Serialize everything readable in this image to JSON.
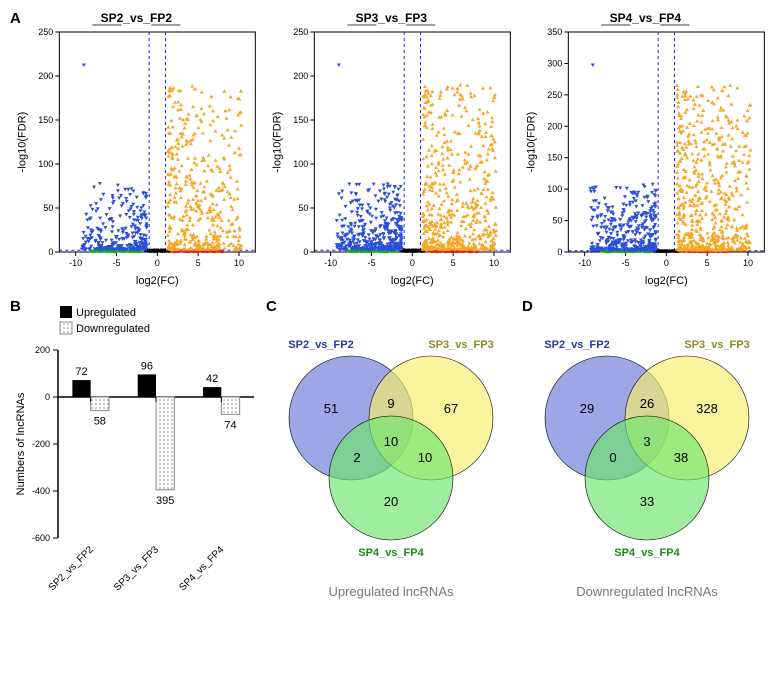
{
  "panelA": {
    "label": "A",
    "plots": [
      {
        "title": "SP2_vs_FP2",
        "xlabel": "log2(FC)",
        "ylabel": "-log10(FDR)",
        "xlim": [
          -12,
          12
        ],
        "ylim": [
          0,
          250
        ],
        "ytick_step": 50,
        "xtick_vals": [
          -10,
          -5,
          0,
          5,
          10
        ],
        "colors": {
          "up": "#f5a623",
          "down": "#2b4fd6",
          "ns_black": "#000000",
          "ns_green": "#1ab01a",
          "ns_red": "#d9262b",
          "thresh": "#2222dd",
          "axis": "#000000",
          "bg": "#ffffff"
        }
      },
      {
        "title": "SP3_vs_FP3",
        "xlabel": "log2(FC)",
        "ylabel": "-log10(FDR)",
        "xlim": [
          -12,
          12
        ],
        "ylim": [
          0,
          250
        ],
        "ytick_step": 50,
        "xtick_vals": [
          -10,
          -5,
          0,
          5,
          10
        ],
        "colors": {
          "up": "#f5a623",
          "down": "#2b4fd6",
          "ns_black": "#000000",
          "ns_green": "#1ab01a",
          "ns_red": "#d9262b",
          "thresh": "#2222dd",
          "axis": "#000000",
          "bg": "#ffffff"
        }
      },
      {
        "title": "SP4_vs_FP4",
        "xlabel": "log2(FC)",
        "ylabel": "-log10(FDR)",
        "xlim": [
          -12,
          12
        ],
        "ylim": [
          0,
          350
        ],
        "ytick_step": 50,
        "xtick_vals": [
          -10,
          -5,
          0,
          5,
          10
        ],
        "colors": {
          "up": "#f5a623",
          "down": "#2b4fd6",
          "ns_black": "#000000",
          "ns_green": "#1ab01a",
          "ns_red": "#d9262b",
          "thresh": "#2222dd",
          "axis": "#000000",
          "bg": "#ffffff"
        }
      }
    ]
  },
  "panelB": {
    "label": "B",
    "ylabel": "Numbers of lncRNAs",
    "ylim": [
      -600,
      200
    ],
    "ytick_vals": [
      -600,
      -400,
      -200,
      0,
      200
    ],
    "legend": {
      "up": "Upregulated",
      "down": "Downregulated"
    },
    "categories": [
      "SP2_vs_FP2",
      "SP3_vs_FP3",
      "SP4_vs_FP4"
    ],
    "up_values": [
      72,
      96,
      42
    ],
    "down_values": [
      58,
      395,
      74
    ],
    "colors": {
      "up_fill": "#000000",
      "down_fill": "#ffffff",
      "down_pattern": "#888888",
      "down_border": "#888888",
      "axis": "#000000",
      "text": "#000000"
    }
  },
  "panelC": {
    "label": "C",
    "caption": "Upregulated lncRNAs",
    "sets": {
      "A": {
        "label": "SP2_vs_FP2",
        "color": "#6a76d7",
        "label_color": "#2b36a8"
      },
      "B": {
        "label": "SP3_vs_FP3",
        "color": "#f6f06a",
        "label_color": "#8a8a2a"
      },
      "C": {
        "label": "SP4_vs_FP4",
        "color": "#6ce56c",
        "label_color": "#1c8a1c"
      }
    },
    "values": {
      "onlyA": 51,
      "onlyB": 67,
      "onlyC": 20,
      "AB": 9,
      "AC": 2,
      "BC": 10,
      "ABC": 10
    }
  },
  "panelD": {
    "label": "D",
    "caption": "Downregulated lncRNAs",
    "sets": {
      "A": {
        "label": "SP2_vs_FP2",
        "color": "#6a76d7",
        "label_color": "#2b36a8"
      },
      "B": {
        "label": "SP3_vs_FP3",
        "color": "#f6f06a",
        "label_color": "#8a8a2a"
      },
      "C": {
        "label": "SP4_vs_FP4",
        "color": "#6ce56c",
        "label_color": "#1c8a1c"
      }
    },
    "values": {
      "onlyA": 29,
      "onlyB": 328,
      "onlyC": 33,
      "AB": 26,
      "AC": 0,
      "BC": 38,
      "ABC": 3
    }
  },
  "style": {
    "font": "Arial",
    "title_fontsize": 12,
    "label_fontsize": 11,
    "tick_fontsize": 9,
    "caption_fontsize": 13,
    "panel_label_fontsize": 15
  }
}
